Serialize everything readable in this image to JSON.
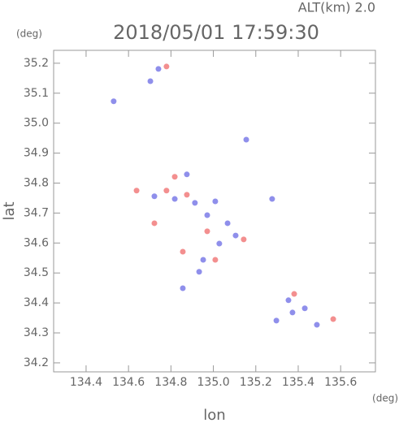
{
  "chart_data": {
    "type": "scatter",
    "title": "2018/05/01 17:59:30",
    "subtitle": "ALT(km) 2.0",
    "x_label": "lon",
    "y_label": "lat",
    "x_unit": "(deg)",
    "y_unit": "(deg)",
    "xlim": [
      134.247,
      135.764
    ],
    "ylim": [
      34.17,
      35.243
    ],
    "xticks": [
      134.4,
      134.6,
      134.8,
      {
        "value": 135,
        "label": "135.0"
      },
      135.2,
      135.4,
      135.6
    ],
    "yticks": [
      34.2,
      34.3,
      34.4,
      34.5,
      34.6,
      34.7,
      34.8,
      34.9,
      {
        "value": 35,
        "label": "35.0"
      },
      35.1,
      35.2
    ],
    "series": [
      {
        "color": "#7373e6",
        "x": [
          134.703,
          134.741,
          134.53,
          135.155,
          134.875,
          134.722,
          134.818,
          134.913,
          135.009,
          134.971,
          135.067,
          135.105,
          135.028,
          134.952,
          134.933,
          134.856,
          135.277,
          135.297,
          135.373,
          135.431,
          135.488,
          135.354
        ],
        "y": [
          35.14,
          35.181,
          35.073,
          34.945,
          34.829,
          34.756,
          34.747,
          34.734,
          34.739,
          34.693,
          34.666,
          34.625,
          34.598,
          34.544,
          34.504,
          34.449,
          34.747,
          34.341,
          34.368,
          34.382,
          34.327,
          34.409
        ]
      },
      {
        "color": "#f07373",
        "x": [
          134.779,
          134.818,
          134.638,
          134.779,
          134.875,
          134.722,
          134.971,
          134.856,
          135.009,
          135.381,
          135.565,
          135.143
        ],
        "y": [
          35.189,
          34.821,
          34.775,
          34.775,
          34.761,
          34.666,
          34.639,
          34.571,
          34.544,
          34.43,
          34.346,
          34.612
        ]
      }
    ]
  }
}
